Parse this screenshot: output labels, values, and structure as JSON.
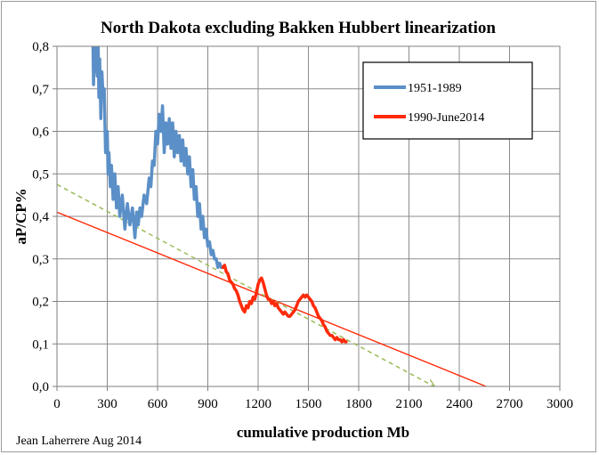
{
  "chart_data": {
    "type": "line",
    "title": "North Dakota excluding Bakken Hubbert linearization",
    "xlabel": "cumulative production Mb",
    "ylabel": "aP/CP%",
    "xlim": [
      0,
      3000
    ],
    "ylim": [
      0,
      0.8
    ],
    "x_ticks": [
      "0",
      "300",
      "600",
      "900",
      "1200",
      "1500",
      "1800",
      "2100",
      "2400",
      "2700",
      "3000"
    ],
    "y_ticks": [
      "0,0",
      "0,1",
      "0,2",
      "0,3",
      "0,4",
      "0,5",
      "0,6",
      "0,7",
      "0,8"
    ],
    "grid": true,
    "legend_position": "top-right",
    "credit": "Jean Laherrere Aug 2014",
    "colors": {
      "series1": "#5b8fc7",
      "series2": "#ff2a0a",
      "fit_red": "#ff2a0a",
      "fit_green": "#9bbb59"
    },
    "series": [
      {
        "name": "1951-1989",
        "x": [
          215,
          218,
          222,
          228,
          235,
          240,
          246,
          250,
          255,
          262,
          268,
          275,
          282,
          290,
          300,
          305,
          310,
          318,
          325,
          335,
          345,
          355,
          365,
          375,
          390,
          405,
          420,
          435,
          450,
          465,
          475,
          485,
          495,
          505,
          520,
          535,
          550,
          560,
          570,
          580,
          590,
          600,
          610,
          620,
          630,
          640,
          650,
          660,
          670,
          680,
          690,
          700,
          710,
          720,
          730,
          740,
          750,
          760,
          770,
          780,
          790,
          800,
          810,
          820,
          830,
          840,
          850,
          860,
          870,
          880,
          890,
          900,
          910,
          920,
          930,
          940,
          950,
          960,
          970,
          980,
          990
        ],
        "y": [
          0.8,
          0.71,
          0.8,
          0.74,
          0.8,
          0.73,
          0.8,
          0.68,
          0.77,
          0.63,
          0.74,
          0.68,
          0.7,
          0.55,
          0.6,
          0.5,
          0.55,
          0.47,
          0.52,
          0.44,
          0.5,
          0.42,
          0.47,
          0.4,
          0.45,
          0.37,
          0.43,
          0.38,
          0.42,
          0.35,
          0.41,
          0.38,
          0.42,
          0.4,
          0.45,
          0.43,
          0.49,
          0.47,
          0.53,
          0.52,
          0.6,
          0.57,
          0.64,
          0.6,
          0.66,
          0.55,
          0.62,
          0.57,
          0.63,
          0.56,
          0.62,
          0.54,
          0.6,
          0.55,
          0.59,
          0.53,
          0.58,
          0.52,
          0.56,
          0.5,
          0.54,
          0.47,
          0.51,
          0.44,
          0.47,
          0.4,
          0.43,
          0.37,
          0.4,
          0.35,
          0.37,
          0.33,
          0.34,
          0.31,
          0.32,
          0.3,
          0.3,
          0.28,
          0.29,
          0.28,
          0.28
        ]
      },
      {
        "name": "1990-June2014",
        "x": [
          990,
          1000,
          1010,
          1020,
          1030,
          1040,
          1050,
          1060,
          1070,
          1080,
          1090,
          1100,
          1110,
          1120,
          1130,
          1140,
          1150,
          1160,
          1170,
          1180,
          1190,
          1200,
          1210,
          1220,
          1230,
          1240,
          1250,
          1260,
          1270,
          1280,
          1290,
          1300,
          1310,
          1320,
          1330,
          1340,
          1350,
          1360,
          1370,
          1380,
          1390,
          1400,
          1410,
          1420,
          1430,
          1440,
          1450,
          1460,
          1470,
          1480,
          1490,
          1500,
          1510,
          1520,
          1530,
          1540,
          1550,
          1560,
          1570,
          1580,
          1590,
          1600,
          1610,
          1620,
          1630,
          1640,
          1650,
          1660,
          1670,
          1680,
          1690,
          1700,
          1710,
          1720,
          1725
        ],
        "y": [
          0.28,
          0.285,
          0.27,
          0.265,
          0.25,
          0.245,
          0.24,
          0.23,
          0.225,
          0.215,
          0.2,
          0.19,
          0.18,
          0.175,
          0.19,
          0.185,
          0.2,
          0.195,
          0.21,
          0.205,
          0.22,
          0.24,
          0.25,
          0.255,
          0.245,
          0.23,
          0.215,
          0.205,
          0.205,
          0.195,
          0.2,
          0.19,
          0.195,
          0.185,
          0.18,
          0.175,
          0.17,
          0.175,
          0.17,
          0.165,
          0.165,
          0.17,
          0.175,
          0.18,
          0.19,
          0.2,
          0.205,
          0.21,
          0.215,
          0.21,
          0.215,
          0.21,
          0.205,
          0.2,
          0.19,
          0.185,
          0.175,
          0.165,
          0.16,
          0.155,
          0.145,
          0.14,
          0.13,
          0.125,
          0.12,
          0.12,
          0.115,
          0.11,
          0.115,
          0.11,
          0.11,
          0.105,
          0.11,
          0.105,
          0.105
        ]
      }
    ],
    "fit_lines": [
      {
        "color": "red",
        "x": [
          0,
          2560
        ],
        "y": [
          0.41,
          0.0
        ]
      },
      {
        "color": "green",
        "dashed": true,
        "x": [
          0,
          2250
        ],
        "y": [
          0.475,
          0.0
        ]
      }
    ]
  }
}
